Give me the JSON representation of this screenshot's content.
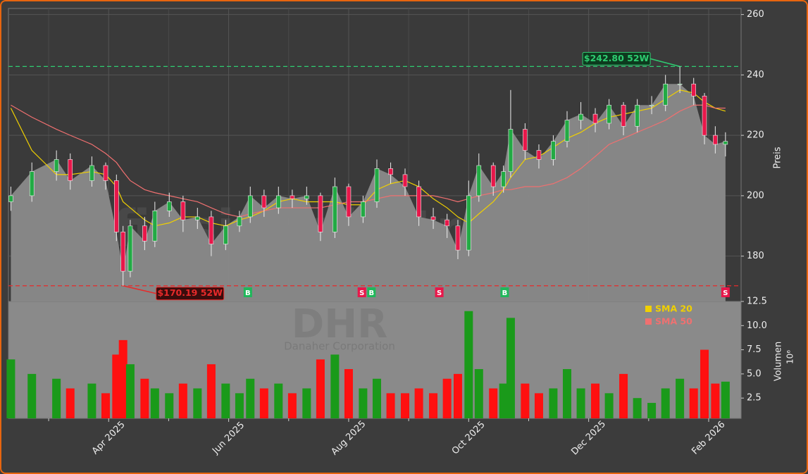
{
  "chart_data": [
    {
      "type": "candlestick",
      "watermark": "finsignale.trade",
      "ylabel": "Preis",
      "x": [
        1.37,
        1.72,
        2.13,
        2.36,
        2.72,
        2.95,
        3.13,
        3.24,
        3.36,
        3.6,
        3.77,
        4.01,
        4.24,
        4.48,
        4.71,
        4.95,
        5.18,
        5.36,
        5.59,
        5.83,
        6.06,
        6.3,
        6.53,
        6.77,
        7.0,
        7.24,
        7.47,
        7.7,
        7.94,
        8.17,
        8.41,
        8.64,
        8.82,
        9.0,
        9.17,
        9.41,
        9.58,
        9.7,
        9.94,
        10.17,
        10.41,
        10.64,
        10.87,
        11.11,
        11.34,
        11.58,
        11.81,
        12.05,
        12.28,
        12.52,
        12.75,
        12.93,
        13.11,
        13.28
      ],
      "open": [
        198,
        200,
        208,
        212,
        205,
        210,
        205,
        188,
        175,
        190,
        185,
        195,
        198,
        192,
        193,
        184,
        190,
        193,
        200,
        196,
        200,
        199,
        200,
        188,
        203,
        193,
        198,
        209,
        207,
        203,
        193,
        192,
        190,
        182,
        200,
        210,
        203,
        208,
        222,
        215,
        212,
        218,
        225,
        227,
        224,
        230,
        223,
        230,
        230,
        237,
        237,
        233,
        220,
        217
      ],
      "high": [
        203,
        211,
        215,
        214,
        213,
        211,
        207,
        190,
        192,
        193,
        198,
        201,
        200,
        196,
        195,
        192,
        195,
        203,
        202,
        203,
        202,
        203,
        201,
        206,
        204,
        200,
        212,
        211,
        209,
        205,
        196,
        194,
        192,
        205,
        214,
        211,
        210,
        235,
        224,
        217,
        220,
        228,
        231,
        229,
        232,
        231,
        232,
        233,
        240,
        242.8,
        239,
        234,
        223,
        221
      ],
      "low": [
        195,
        198,
        205,
        202,
        203,
        202,
        185,
        170.19,
        173,
        182,
        183,
        193,
        188,
        189,
        180,
        182,
        188,
        191,
        193,
        194,
        196,
        197,
        185,
        186,
        190,
        191,
        196,
        204,
        200,
        190,
        189,
        186,
        179,
        180,
        198,
        200,
        201,
        206,
        212,
        209,
        210,
        216,
        222,
        221,
        222,
        220,
        221,
        227,
        228,
        234,
        230,
        217,
        214,
        213
      ],
      "close": [
        200,
        208,
        212,
        205,
        210,
        205,
        188,
        175,
        190,
        185,
        195,
        198,
        192,
        193,
        184,
        190,
        193,
        200,
        196,
        200,
        199,
        200,
        188,
        203,
        193,
        198,
        209,
        207,
        203,
        193,
        192,
        190,
        182,
        200,
        210,
        203,
        208,
        222,
        215,
        212,
        218,
        225,
        227,
        224,
        230,
        223,
        230,
        230,
        237,
        237,
        233,
        220,
        217,
        218
      ],
      "up_color": "#22aa44",
      "down_color": "#e8174a",
      "area_color": "#8a8a8a",
      "series": [
        {
          "name": "SMA 20",
          "color": "#f0d000",
          "values": [
            229,
            215,
            207,
            207,
            208,
            207,
            203,
            198,
            196,
            192,
            190,
            191,
            193,
            193,
            191,
            190,
            192,
            193,
            195,
            198,
            199,
            198,
            198,
            198,
            197,
            197,
            202,
            204,
            205,
            203,
            199,
            196,
            193,
            191,
            194,
            198,
            202,
            206,
            212,
            213,
            216,
            219,
            221,
            224,
            226,
            227,
            228,
            229,
            232,
            235,
            234,
            231,
            229,
            228
          ]
        },
        {
          "name": "SMA 50",
          "color": "#f07070",
          "values": [
            230,
            226,
            222,
            220,
            217,
            214,
            211,
            208,
            205,
            202,
            201,
            200,
            199,
            198,
            196,
            194,
            193,
            194,
            195,
            196,
            196,
            196,
            196,
            197,
            198,
            198,
            199,
            200,
            200,
            200,
            200,
            199,
            198,
            199,
            200,
            201,
            202,
            202,
            203,
            203,
            204,
            206,
            209,
            213,
            217,
            219,
            221,
            223,
            225,
            228,
            230,
            230,
            229,
            229
          ]
        }
      ],
      "legend": true,
      "hlines": [
        {
          "value": 242.8,
          "x": 12.52,
          "color": "#2ecc71",
          "label": "$242.80 52W"
        },
        {
          "value": 170.19,
          "x": 3.24,
          "color": "#e82a2a",
          "label": "$170.19 52W"
        }
      ],
      "signals": [
        {
          "x": 5.32,
          "label": "B"
        },
        {
          "x": 7.22,
          "label": "S"
        },
        {
          "x": 7.38,
          "label": "B"
        },
        {
          "x": 8.51,
          "label": "S"
        },
        {
          "x": 9.6,
          "label": "B"
        },
        {
          "x": 13.28,
          "label": "S"
        }
      ],
      "xlim": [
        1.33,
        13.54
      ],
      "xticks": [
        {
          "value": 3,
          "label": "Apr 2025"
        },
        {
          "value": 5,
          "label": "Jun 2025"
        },
        {
          "value": 7,
          "label": "Aug 2025"
        },
        {
          "value": 9,
          "label": "Oct 2025"
        },
        {
          "value": 11,
          "label": "Dec 2025"
        },
        {
          "value": 13,
          "label": "Feb 2026"
        }
      ],
      "xminorticks": [
        2,
        4,
        6,
        8,
        10,
        12
      ],
      "ylim": [
        165,
        262
      ],
      "yticks": [
        180,
        200,
        220,
        240,
        260
      ],
      "grid": true
    },
    {
      "type": "bar",
      "watermark": "DHR",
      "watermark_subtitle": "Danaher Corporation",
      "ylabel": "Volumen",
      "yunit": "10⁶",
      "values": [
        6.5,
        5.0,
        4.5,
        3.5,
        4.0,
        3.0,
        7.0,
        8.5,
        6.0,
        4.5,
        3.5,
        3.0,
        4.0,
        3.5,
        6.0,
        4.0,
        3.0,
        4.5,
        3.5,
        4.0,
        3.0,
        3.5,
        6.5,
        7.0,
        5.5,
        3.5,
        4.5,
        3.0,
        3.0,
        3.5,
        3.0,
        4.5,
        5.0,
        11.5,
        5.5,
        3.5,
        4.0,
        10.8,
        4.0,
        3.0,
        3.5,
        5.5,
        3.5,
        4.0,
        3.0,
        5.0,
        2.5,
        2.0,
        3.5,
        4.5,
        3.5,
        7.5,
        4.0,
        4.2
      ],
      "ylim": [
        0.4,
        12.5
      ],
      "yticks": [
        2.5,
        {
          "value": 5,
          "label": "5.0"
        },
        7.5,
        {
          "value": 10,
          "label": "10.0"
        },
        12.5
      ]
    }
  ]
}
